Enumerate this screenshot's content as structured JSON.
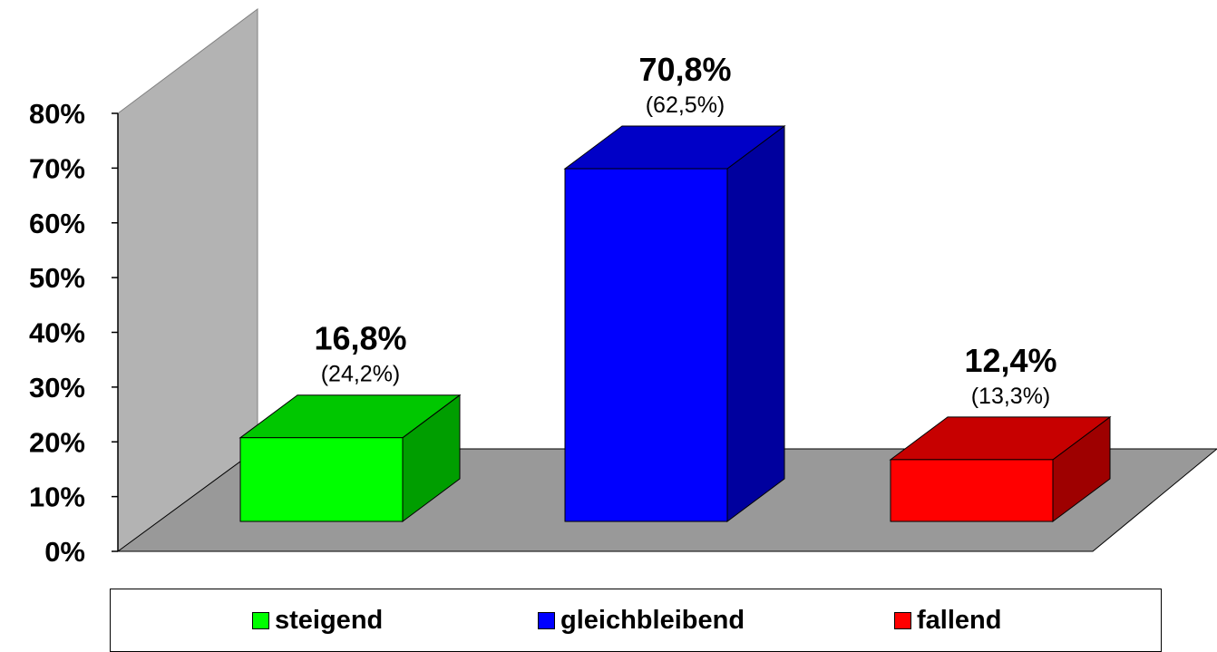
{
  "chart_data": {
    "type": "bar",
    "categories": [
      "steigend",
      "gleichbleibend",
      "fallend"
    ],
    "values": [
      16.8,
      70.8,
      12.4
    ],
    "value_labels": [
      "16,8%",
      "70,8%",
      "12,4%"
    ],
    "secondary_labels": [
      "(24,2%)",
      "(62,5%)",
      "(13,3%)"
    ],
    "colors": [
      "#00ff00",
      "#0000ff",
      "#ff0000"
    ],
    "ylim": [
      0,
      80
    ],
    "yticks": [
      "0%",
      "10%",
      "20%",
      "30%",
      "40%",
      "50%",
      "60%",
      "70%",
      "80%"
    ],
    "three_d": true,
    "grid": false,
    "legend_position": "bottom"
  }
}
